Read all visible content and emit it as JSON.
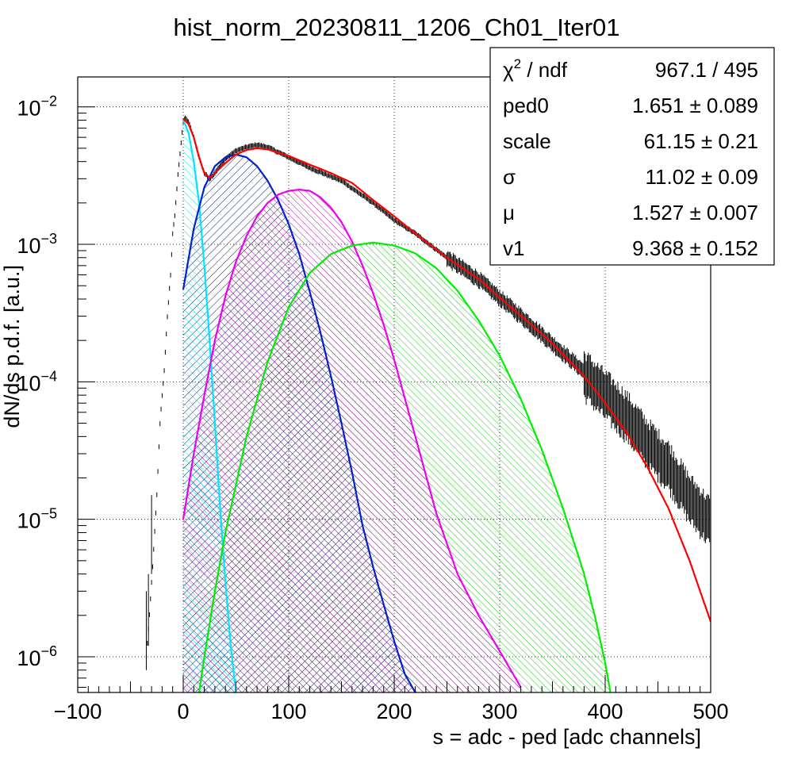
{
  "chart_data": {
    "type": "line",
    "title": "hist_norm_20230811_1206_Ch01_Iter01",
    "xlabel": "s = adc - ped [adc channels]",
    "ylabel": "dN/ds p.d.f. [a.u.]",
    "xlim": [
      -100,
      500
    ],
    "ylim": [
      5.5e-07,
      0.0165
    ],
    "log_y": true,
    "grid": true,
    "x_ticks": [
      -100,
      0,
      100,
      200,
      300,
      400,
      500
    ],
    "x_tick_labels": [
      "−100",
      "0",
      "100",
      "200",
      "300",
      "400",
      "500"
    ],
    "y_ticks": [
      1e-06,
      1e-05,
      0.0001,
      0.001,
      0.01
    ],
    "y_tick_labels": [
      {
        "base": "10",
        "exp": "−6"
      },
      {
        "base": "10",
        "exp": "−5"
      },
      {
        "base": "10",
        "exp": "−4"
      },
      {
        "base": "10",
        "exp": "−3"
      },
      {
        "base": "10",
        "exp": "−2"
      }
    ],
    "series": [
      {
        "kind": "histogram",
        "color": "#000000",
        "points": [
          [
            -35,
            1e-06
          ],
          [
            -32,
            2e-06
          ],
          [
            -28,
            6e-06
          ],
          [
            -25,
            1.5e-05
          ],
          [
            -22,
            5e-05
          ],
          [
            -20,
            8e-05
          ],
          [
            -18,
            0.00012
          ],
          [
            -15,
            0.0003
          ],
          [
            -12,
            0.0006
          ],
          [
            -10,
            0.0012
          ],
          [
            -8,
            0.0016
          ],
          [
            -5,
            0.0032
          ],
          [
            -2,
            0.0055
          ],
          [
            0,
            0.0078
          ],
          [
            2,
            0.0083
          ],
          [
            5,
            0.0078
          ],
          [
            10,
            0.006
          ],
          [
            15,
            0.0043
          ],
          [
            20,
            0.0033
          ],
          [
            25,
            0.003
          ],
          [
            30,
            0.0033
          ],
          [
            40,
            0.0042
          ],
          [
            50,
            0.0048
          ],
          [
            60,
            0.0051
          ],
          [
            70,
            0.0053
          ],
          [
            80,
            0.0051
          ],
          [
            100,
            0.0043
          ],
          [
            120,
            0.0036
          ],
          [
            150,
            0.0029
          ],
          [
            180,
            0.002
          ],
          [
            200,
            0.0015
          ],
          [
            220,
            0.0012
          ],
          [
            250,
            0.0008
          ],
          [
            280,
            0.00056
          ],
          [
            300,
            0.00041
          ],
          [
            330,
            0.00026
          ],
          [
            350,
            0.00019
          ],
          [
            380,
            0.00012
          ],
          [
            400,
            8.5e-05
          ],
          [
            420,
            6e-05
          ],
          [
            440,
            3.8e-05
          ],
          [
            460,
            2.6e-05
          ],
          [
            480,
            1.5e-05
          ],
          [
            500,
            1e-05
          ]
        ]
      },
      {
        "kind": "fit-total",
        "color": "#ff0000",
        "points": [
          [
            0,
            0.0082
          ],
          [
            5,
            0.0075
          ],
          [
            10,
            0.006
          ],
          [
            15,
            0.0043
          ],
          [
            20,
            0.0033
          ],
          [
            25,
            0.00305
          ],
          [
            30,
            0.0033
          ],
          [
            40,
            0.0039
          ],
          [
            50,
            0.0045
          ],
          [
            60,
            0.00485
          ],
          [
            70,
            0.005
          ],
          [
            80,
            0.0049
          ],
          [
            100,
            0.0044
          ],
          [
            120,
            0.0038
          ],
          [
            140,
            0.0033
          ],
          [
            160,
            0.0028
          ],
          [
            180,
            0.0021
          ],
          [
            200,
            0.0016
          ],
          [
            220,
            0.0012
          ],
          [
            250,
            0.0008
          ],
          [
            280,
            0.00056
          ],
          [
            300,
            0.00041
          ],
          [
            330,
            0.00026
          ],
          [
            350,
            0.00019
          ],
          [
            380,
            0.00011
          ],
          [
            400,
            7e-05
          ],
          [
            420,
            4.3e-05
          ],
          [
            440,
            2.4e-05
          ],
          [
            460,
            1.2e-05
          ],
          [
            480,
            5e-06
          ],
          [
            500,
            1.8e-06
          ]
        ]
      },
      {
        "kind": "component",
        "color": "#00e5ff",
        "fill": "#00e5ff",
        "points": [
          [
            0,
            0.008
          ],
          [
            5,
            0.0065
          ],
          [
            10,
            0.004
          ],
          [
            15,
            0.002
          ],
          [
            20,
            0.0007
          ],
          [
            25,
            0.0002
          ],
          [
            30,
            5e-05
          ],
          [
            35,
            1.2e-05
          ],
          [
            40,
            3.5e-06
          ],
          [
            45,
            1.2e-06
          ],
          [
            50,
            5.5e-07
          ]
        ]
      },
      {
        "kind": "component",
        "color": "#0022cc",
        "fill": "#0a1a66",
        "points": [
          [
            0,
            0.00047
          ],
          [
            10,
            0.0013
          ],
          [
            20,
            0.0026
          ],
          [
            30,
            0.0037
          ],
          [
            40,
            0.0043
          ],
          [
            50,
            0.0045
          ],
          [
            60,
            0.0043
          ],
          [
            70,
            0.0037
          ],
          [
            80,
            0.0029
          ],
          [
            90,
            0.0021
          ],
          [
            100,
            0.0014
          ],
          [
            110,
            0.00085
          ],
          [
            120,
            0.00045
          ],
          [
            130,
            0.00023
          ],
          [
            140,
            0.00011
          ],
          [
            150,
            5e-05
          ],
          [
            160,
            2.2e-05
          ],
          [
            170,
            9e-06
          ],
          [
            180,
            4.5e-06
          ],
          [
            190,
            2.4e-06
          ],
          [
            200,
            1.3e-06
          ],
          [
            210,
            7.5e-07
          ],
          [
            220,
            5.5e-07
          ]
        ]
      },
      {
        "kind": "component",
        "color": "#ee00ee",
        "fill": "#aa00aa",
        "points": [
          [
            0,
            1e-05
          ],
          [
            10,
            3e-05
          ],
          [
            20,
            8e-05
          ],
          [
            30,
            0.0002
          ],
          [
            40,
            0.00042
          ],
          [
            50,
            0.00075
          ],
          [
            60,
            0.00115
          ],
          [
            70,
            0.0016
          ],
          [
            80,
            0.002
          ],
          [
            90,
            0.0023
          ],
          [
            100,
            0.00245
          ],
          [
            110,
            0.0025
          ],
          [
            120,
            0.00245
          ],
          [
            130,
            0.0022
          ],
          [
            140,
            0.00185
          ],
          [
            150,
            0.00145
          ],
          [
            160,
            0.00105
          ],
          [
            170,
            0.0007
          ],
          [
            180,
            0.00044
          ],
          [
            190,
            0.00026
          ],
          [
            200,
            0.000145
          ],
          [
            220,
            4e-05
          ],
          [
            240,
            1.1e-05
          ],
          [
            260,
            4e-06
          ],
          [
            280,
            2e-06
          ],
          [
            300,
            1.1e-06
          ],
          [
            320,
            6e-07
          ]
        ]
      },
      {
        "kind": "component",
        "color": "#00ee00",
        "fill": "#00bb00",
        "points": [
          [
            15,
            5.5e-07
          ],
          [
            20,
            1e-06
          ],
          [
            30,
            3e-06
          ],
          [
            40,
            8e-06
          ],
          [
            60,
            4e-05
          ],
          [
            80,
            0.00014
          ],
          [
            100,
            0.00035
          ],
          [
            120,
            0.00062
          ],
          [
            140,
            0.00085
          ],
          [
            160,
            0.00098
          ],
          [
            180,
            0.00103
          ],
          [
            200,
            0.00098
          ],
          [
            220,
            0.00086
          ],
          [
            240,
            0.00067
          ],
          [
            260,
            0.00046
          ],
          [
            280,
            0.00028
          ],
          [
            300,
            0.000155
          ],
          [
            320,
            7.5e-05
          ],
          [
            340,
            3.2e-05
          ],
          [
            360,
            1.2e-05
          ],
          [
            380,
            4e-06
          ],
          [
            390,
            2e-06
          ],
          [
            400,
            9e-07
          ],
          [
            405,
            5.5e-07
          ]
        ]
      }
    ],
    "stats": [
      {
        "label": "χ",
        "label_sup": "2",
        "label_rest": " / ndf",
        "value": "967.1 / 495"
      },
      {
        "label": "ped0",
        "value": "1.651 ± 0.089"
      },
      {
        "label": "scale",
        "value": "61.15 ± 0.21"
      },
      {
        "label": "σ",
        "value": "11.02 ± 0.09"
      },
      {
        "label": "μ",
        "value": "1.527 ± 0.007"
      },
      {
        "label": "v1",
        "value": "9.368 ± 0.152"
      }
    ]
  }
}
